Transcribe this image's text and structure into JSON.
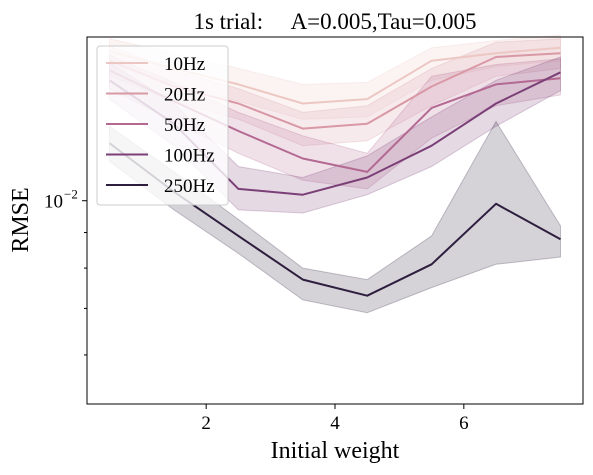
{
  "chart_data": {
    "type": "line",
    "title": "1s trial:     A=0.005,Tau=0.005",
    "xlabel": "Initial weight",
    "ylabel": "RMSE",
    "x": [
      0.5,
      1.5,
      2.5,
      3.5,
      4.5,
      5.5,
      6.5,
      7.5
    ],
    "xlim": [
      0.15,
      7.85
    ],
    "ylim": [
      0.0051,
      0.0172
    ],
    "yscale": "log",
    "xticks": [
      2,
      4,
      6
    ],
    "xtick_labels": [
      "2",
      "4",
      "6"
    ],
    "yticks": [
      0.01
    ],
    "ytick_labels": [
      "10",
      "−2"
    ],
    "grid": false,
    "legend_position": "top-left",
    "series": [
      {
        "name": "10Hz",
        "color": "#edc7c3",
        "values": [
          0.0164,
          0.0155,
          0.0147,
          0.0138,
          0.014,
          0.0159,
          0.0163,
          0.0166
        ],
        "ci_low": [
          0.0157,
          0.0147,
          0.0139,
          0.0131,
          0.0132,
          0.0149,
          0.0156,
          0.0159
        ],
        "ci_high": [
          0.0171,
          0.0163,
          0.0155,
          0.0147,
          0.0148,
          0.0166,
          0.017,
          0.0173
        ]
      },
      {
        "name": "20Hz",
        "color": "#d998a5",
        "values": [
          0.0159,
          0.0146,
          0.0138,
          0.0127,
          0.0129,
          0.0146,
          0.0161,
          0.0163
        ],
        "ci_low": [
          0.0151,
          0.0139,
          0.0131,
          0.012,
          0.0122,
          0.0137,
          0.0151,
          0.0155
        ],
        "ci_high": [
          0.0167,
          0.0154,
          0.0145,
          0.0134,
          0.0137,
          0.0155,
          0.0169,
          0.0171
        ]
      },
      {
        "name": "50Hz",
        "color": "#b36991",
        "values": [
          0.0154,
          0.0139,
          0.0126,
          0.0115,
          0.011,
          0.0136,
          0.0147,
          0.015
        ],
        "ci_low": [
          0.0145,
          0.013,
          0.0117,
          0.0107,
          0.0104,
          0.0123,
          0.0137,
          0.0142
        ],
        "ci_high": [
          0.0162,
          0.0148,
          0.0134,
          0.0124,
          0.0117,
          0.0151,
          0.0157,
          0.016
        ]
      },
      {
        "name": "100Hz",
        "color": "#7b3f77",
        "values": [
          0.0149,
          0.0129,
          0.0104,
          0.0102,
          0.0108,
          0.012,
          0.0138,
          0.0153
        ],
        "ci_low": [
          0.014,
          0.012,
          0.0097,
          0.0096,
          0.0102,
          0.0112,
          0.0128,
          0.0144
        ],
        "ci_high": [
          0.0158,
          0.0138,
          0.0112,
          0.0108,
          0.0116,
          0.0132,
          0.0149,
          0.0161
        ]
      },
      {
        "name": "250Hz",
        "color": "#2d1e3e",
        "values": [
          0.0121,
          0.0103,
          0.0089,
          0.0077,
          0.0073,
          0.0081,
          0.0099,
          0.0088
        ],
        "ci_low": [
          0.0114,
          0.0097,
          0.0084,
          0.0072,
          0.0069,
          0.0075,
          0.0081,
          0.0083
        ],
        "ci_high": [
          0.0128,
          0.011,
          0.0094,
          0.008,
          0.0077,
          0.0089,
          0.013,
          0.0092
        ]
      }
    ]
  }
}
